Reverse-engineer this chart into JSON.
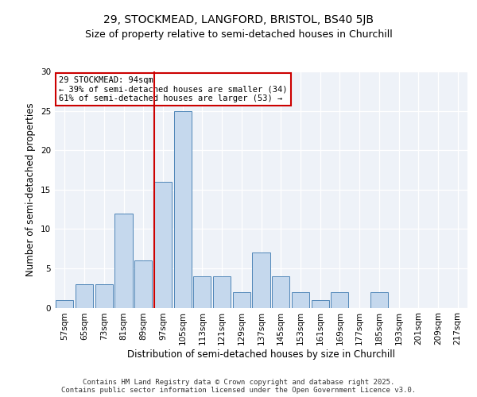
{
  "title1": "29, STOCKMEAD, LANGFORD, BRISTOL, BS40 5JB",
  "title2": "Size of property relative to semi-detached houses in Churchill",
  "xlabel": "Distribution of semi-detached houses by size in Churchill",
  "ylabel": "Number of semi-detached properties",
  "categories": [
    "57sqm",
    "65sqm",
    "73sqm",
    "81sqm",
    "89sqm",
    "97sqm",
    "105sqm",
    "113sqm",
    "121sqm",
    "129sqm",
    "137sqm",
    "145sqm",
    "153sqm",
    "161sqm",
    "169sqm",
    "177sqm",
    "185sqm",
    "193sqm",
    "201sqm",
    "209sqm",
    "217sqm"
  ],
  "values": [
    1,
    3,
    3,
    12,
    6,
    16,
    25,
    4,
    4,
    2,
    7,
    4,
    2,
    1,
    2,
    0,
    2,
    0,
    0,
    0,
    0
  ],
  "bar_color": "#c5d8ed",
  "bar_edge_color": "#4f86b8",
  "vline_color": "#cc0000",
  "annotation_box_color": "#cc0000",
  "annotation_text": "29 STOCKMEAD: 94sqm\n← 39% of semi-detached houses are smaller (34)\n61% of semi-detached houses are larger (53) →",
  "ylim": [
    0,
    30
  ],
  "yticks": [
    0,
    5,
    10,
    15,
    20,
    25,
    30
  ],
  "background_color": "#eef2f8",
  "grid_color": "#ffffff",
  "footer": "Contains HM Land Registry data © Crown copyright and database right 2025.\nContains public sector information licensed under the Open Government Licence v3.0.",
  "title1_fontsize": 10,
  "title2_fontsize": 9,
  "xlabel_fontsize": 8.5,
  "ylabel_fontsize": 8.5,
  "tick_fontsize": 7.5,
  "footer_fontsize": 6.5,
  "annot_fontsize": 7.5
}
